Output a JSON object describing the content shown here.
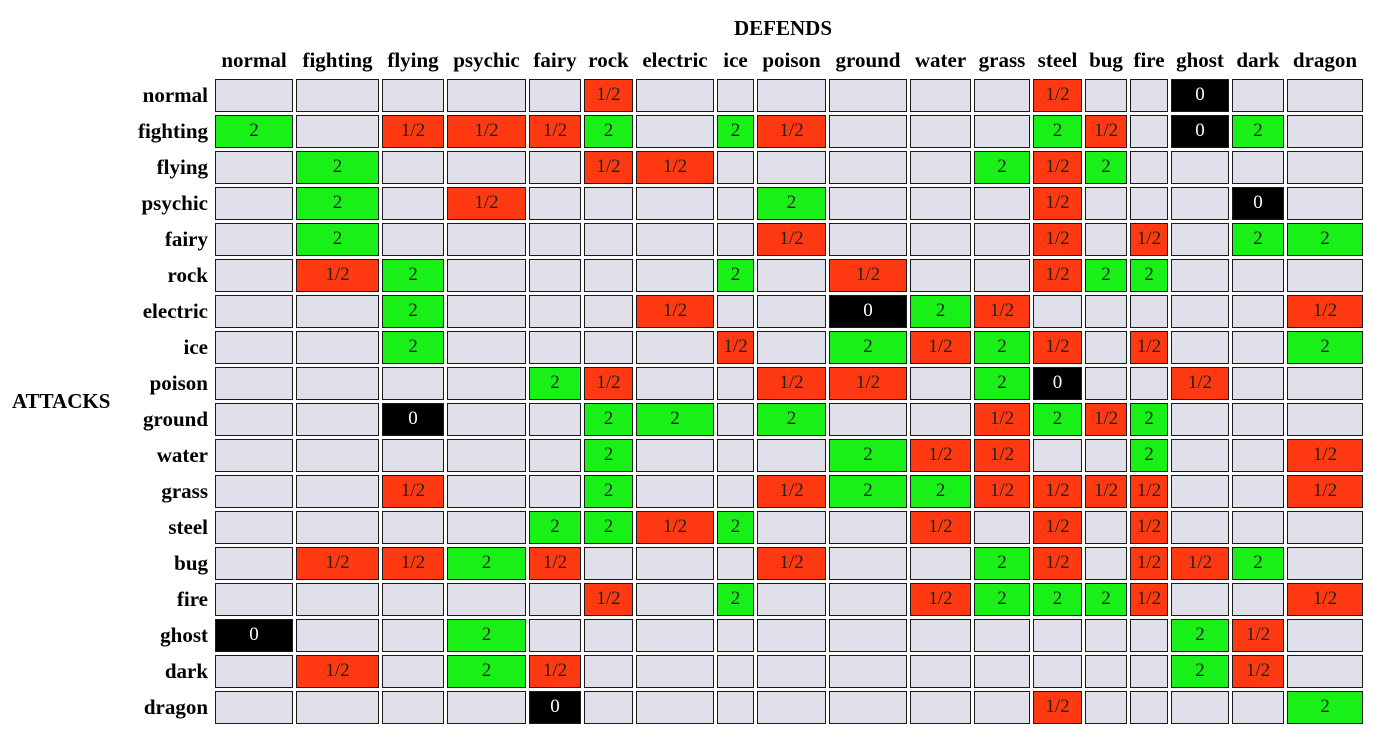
{
  "chart_data": {
    "type": "heatmap",
    "xlabel": "DEFENDS",
    "ylabel": "ATTACKS",
    "columns": [
      "normal",
      "fighting",
      "flying",
      "psychic",
      "fairy",
      "rock",
      "electric",
      "ice",
      "poison",
      "ground",
      "water",
      "grass",
      "steel",
      "bug",
      "fire",
      "ghost",
      "dark",
      "dragon"
    ],
    "rows": [
      "normal",
      "fighting",
      "flying",
      "psychic",
      "fairy",
      "rock",
      "electric",
      "ice",
      "poison",
      "ground",
      "water",
      "grass",
      "steel",
      "bug",
      "fire",
      "ghost",
      "dark",
      "dragon"
    ],
    "values": [
      [
        "",
        "",
        "",
        "",
        "",
        "1/2",
        "",
        "",
        "",
        "",
        "",
        "",
        "1/2",
        "",
        "",
        "0",
        "",
        ""
      ],
      [
        "2",
        "",
        "1/2",
        "1/2",
        "1/2",
        "2",
        "",
        "2",
        "1/2",
        "",
        "",
        "",
        "2",
        "1/2",
        "",
        "0",
        "2",
        ""
      ],
      [
        "",
        "2",
        "",
        "",
        "",
        "1/2",
        "1/2",
        "",
        "",
        "",
        "",
        "2",
        "1/2",
        "2",
        "",
        "",
        "",
        ""
      ],
      [
        "",
        "2",
        "",
        "1/2",
        "",
        "",
        "",
        "",
        "2",
        "",
        "",
        "",
        "1/2",
        "",
        "",
        "",
        "0",
        ""
      ],
      [
        "",
        "2",
        "",
        "",
        "",
        "",
        "",
        "",
        "1/2",
        "",
        "",
        "",
        "1/2",
        "",
        "1/2",
        "",
        "2",
        "2"
      ],
      [
        "",
        "1/2",
        "2",
        "",
        "",
        "",
        "",
        "2",
        "",
        "1/2",
        "",
        "",
        "1/2",
        "2",
        "2",
        "",
        "",
        ""
      ],
      [
        "",
        "",
        "2",
        "",
        "",
        "",
        "1/2",
        "",
        "",
        "0",
        "2",
        "1/2",
        "",
        "",
        "",
        "",
        "",
        "1/2"
      ],
      [
        "",
        "",
        "2",
        "",
        "",
        "",
        "",
        "1/2",
        "",
        "2",
        "1/2",
        "2",
        "1/2",
        "",
        "1/2",
        "",
        "",
        "2"
      ],
      [
        "",
        "",
        "",
        "",
        "2",
        "1/2",
        "",
        "",
        "1/2",
        "1/2",
        "",
        "2",
        "0",
        "",
        "",
        "1/2",
        "",
        ""
      ],
      [
        "",
        "",
        "0",
        "",
        "",
        "2",
        "2",
        "",
        "2",
        "",
        "",
        "1/2",
        "2",
        "1/2",
        "2",
        "",
        "",
        ""
      ],
      [
        "",
        "",
        "",
        "",
        "",
        "2",
        "",
        "",
        "",
        "2",
        "1/2",
        "1/2",
        "",
        "",
        "2",
        "",
        "",
        "1/2"
      ],
      [
        "",
        "",
        "1/2",
        "",
        "",
        "2",
        "",
        "",
        "1/2",
        "2",
        "2",
        "1/2",
        "1/2",
        "1/2",
        "1/2",
        "",
        "",
        "1/2"
      ],
      [
        "",
        "",
        "",
        "",
        "2",
        "2",
        "1/2",
        "2",
        "",
        "",
        "1/2",
        "",
        "1/2",
        "",
        "1/2",
        "",
        "",
        ""
      ],
      [
        "",
        "1/2",
        "1/2",
        "2",
        "1/2",
        "",
        "",
        "",
        "1/2",
        "",
        "",
        "2",
        "1/2",
        "",
        "1/2",
        "1/2",
        "2",
        ""
      ],
      [
        "",
        "",
        "",
        "",
        "",
        "1/2",
        "",
        "2",
        "",
        "",
        "1/2",
        "2",
        "2",
        "2",
        "1/2",
        "",
        "",
        "1/2"
      ],
      [
        "0",
        "",
        "",
        "2",
        "",
        "",
        "",
        "",
        "",
        "",
        "",
        "",
        "",
        "",
        "",
        "2",
        "1/2",
        ""
      ],
      [
        "",
        "1/2",
        "",
        "2",
        "1/2",
        "",
        "",
        "",
        "",
        "",
        "",
        "",
        "",
        "",
        "",
        "2",
        "1/2",
        ""
      ],
      [
        "",
        "",
        "",
        "",
        "0",
        "",
        "",
        "",
        "",
        "",
        "",
        "",
        "1/2",
        "",
        "",
        "",
        "",
        "2"
      ]
    ],
    "colors": {
      "neutral": "#e0e0ea",
      "1/2": "#ff3a12",
      "2": "#18f018",
      "0": "#000000"
    }
  }
}
